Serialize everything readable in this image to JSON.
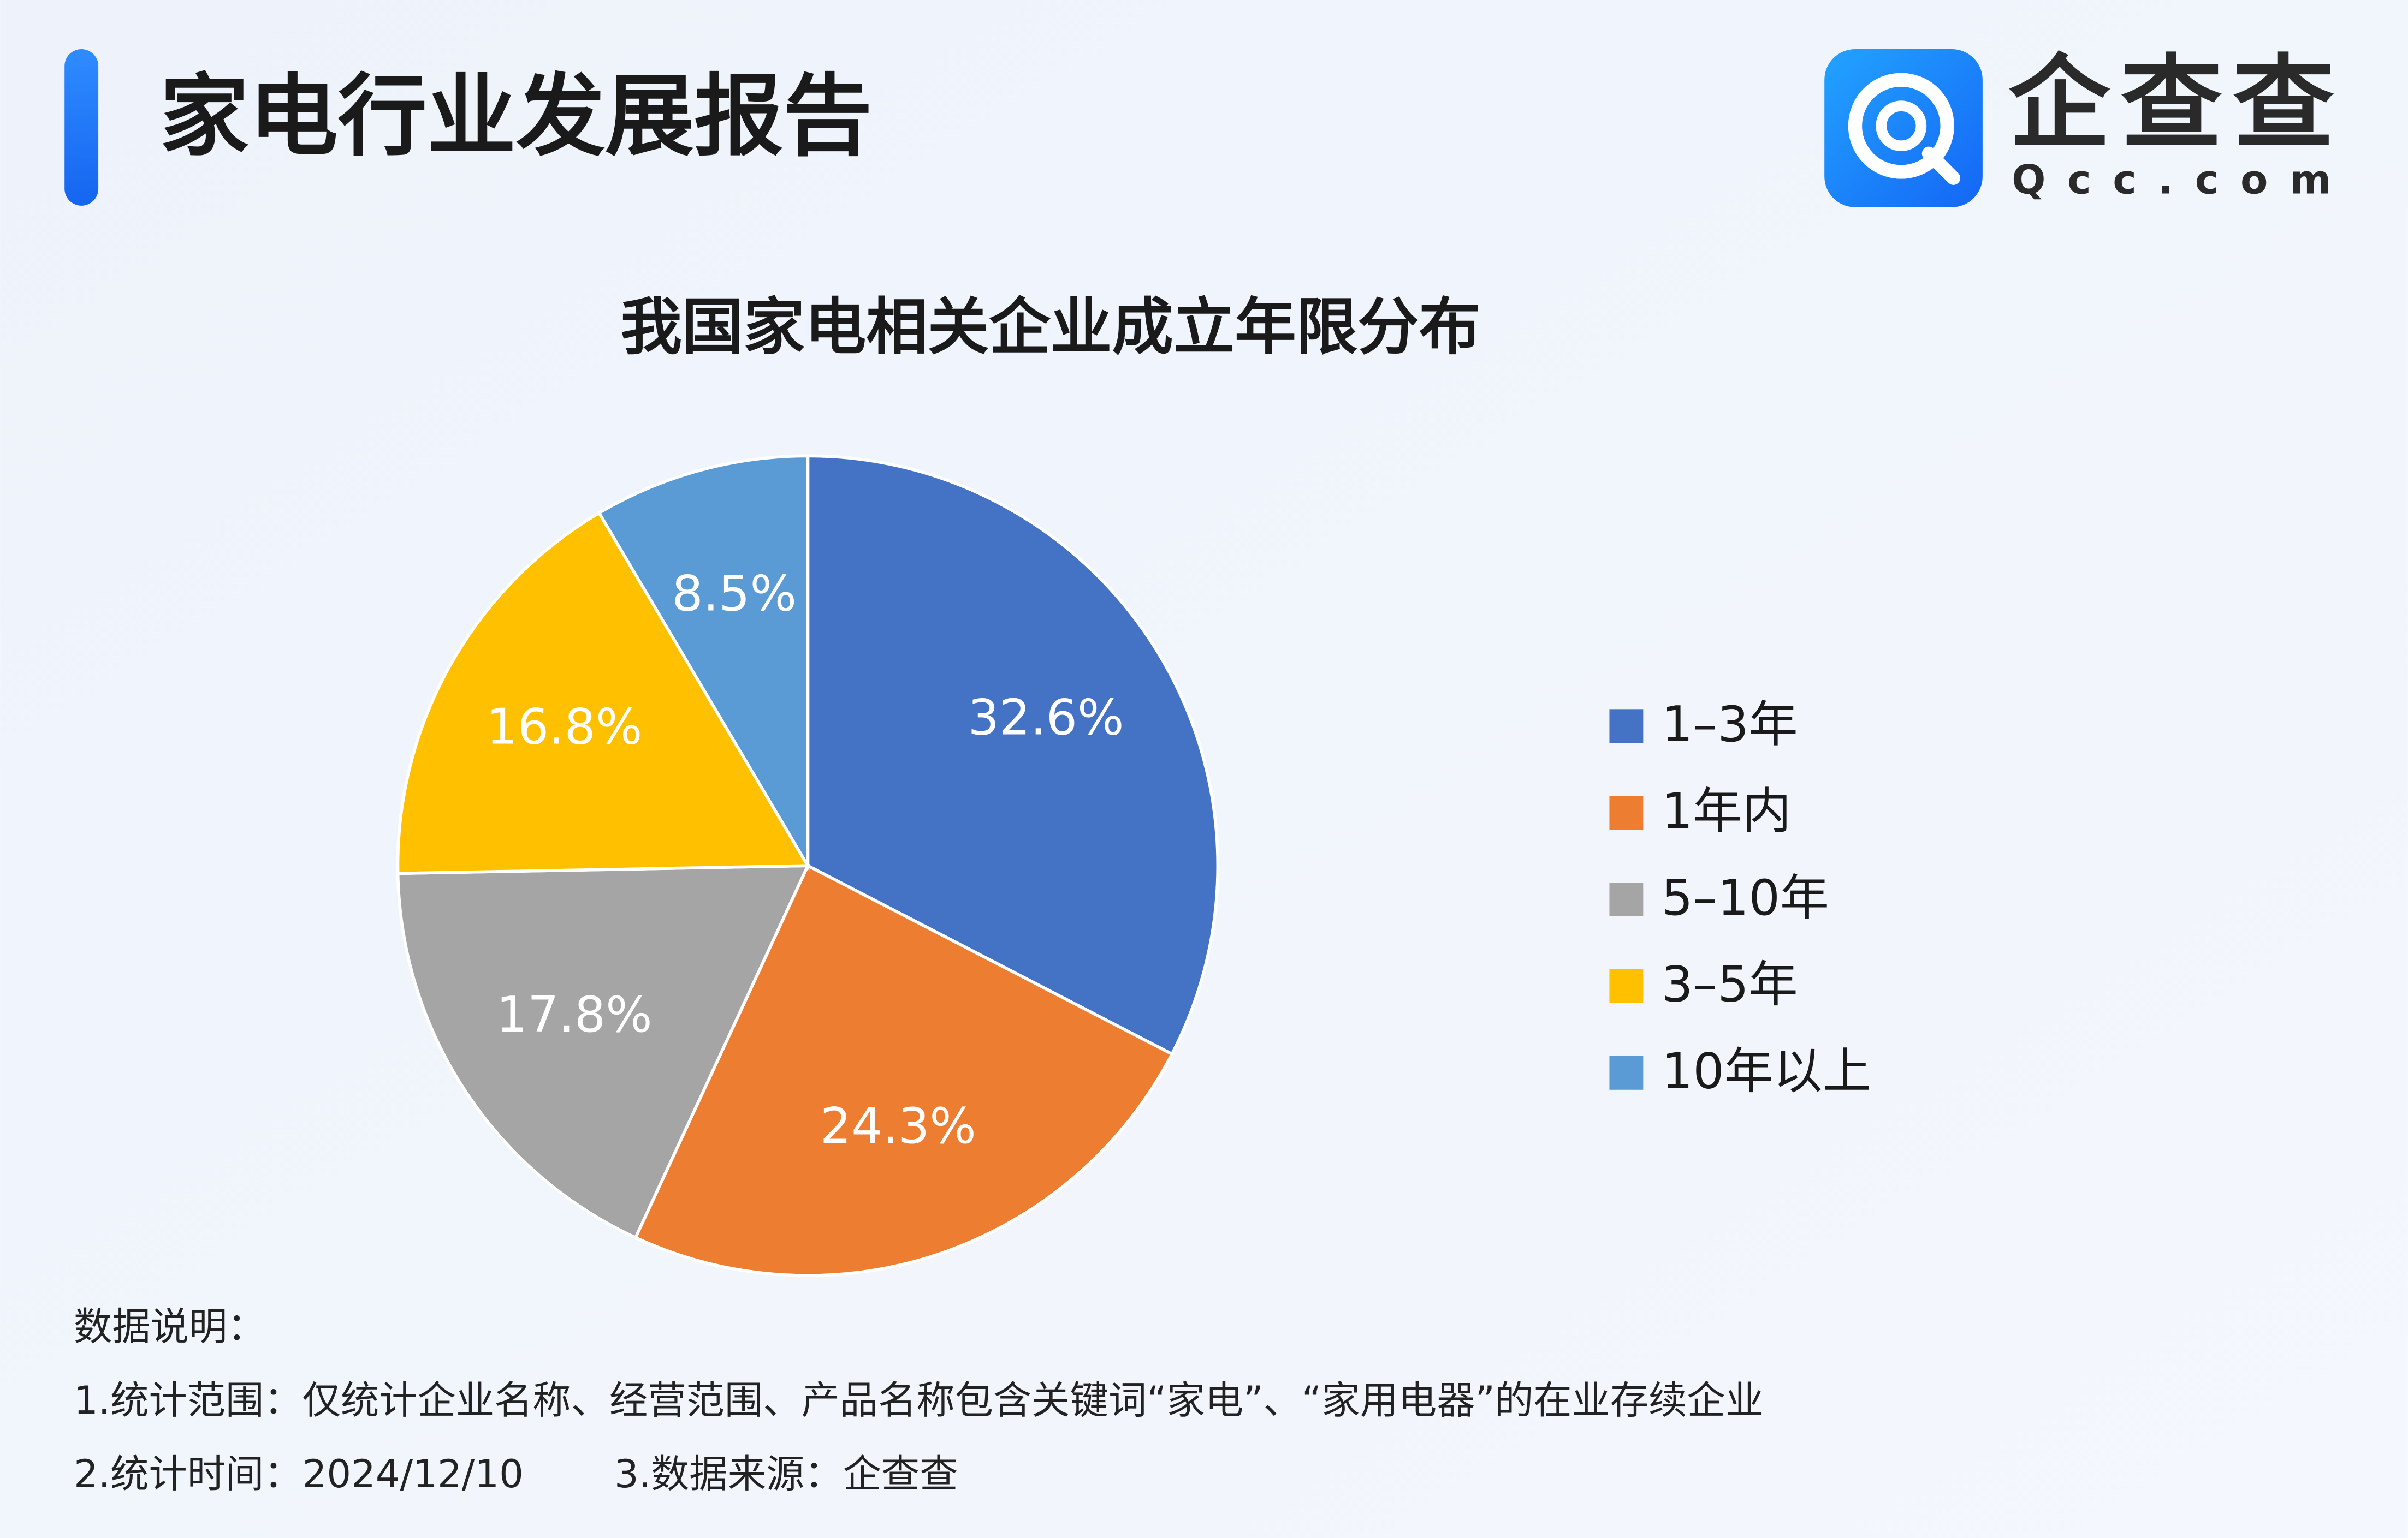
{
  "header": {
    "title": "家电行业发展报告",
    "logo_text": "企查查",
    "logo_domain": "Qcc.com"
  },
  "chart_data": {
    "type": "pie",
    "title": "我国家电相关企业成立年限分布",
    "categories": [
      "1–3年",
      "1年内",
      "5–10年",
      "3–5年",
      "10年以上"
    ],
    "values": [
      32.6,
      24.3,
      17.8,
      16.8,
      8.5
    ],
    "value_labels": [
      "32.6%",
      "24.3%",
      "17.8%",
      "16.8%",
      "8.5%"
    ],
    "colors": [
      "#4472c4",
      "#ed7d31",
      "#a5a5a5",
      "#ffc000",
      "#5b9bd5"
    ],
    "legend": "right"
  },
  "notes": {
    "heading": "数据说明：",
    "line1": "1.统计范围：仅统计企业名称、经营范围、产品名称包含关键词“家电”、“家用电器”的在业存续企业",
    "time": "2.统计时间：2024/12/10",
    "source": "3.数据来源：企查查"
  }
}
